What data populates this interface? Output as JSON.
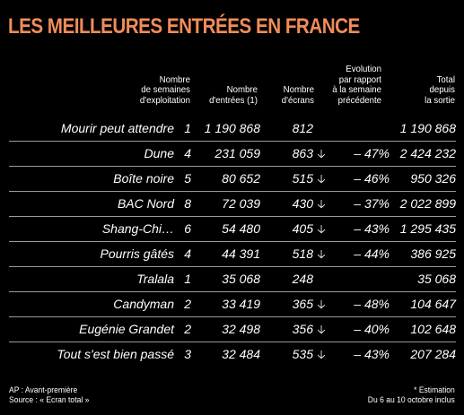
{
  "title": "LES MEILLEURES ENTRÉES EN FRANCE",
  "headers": {
    "weeks": "Nombre\nde semaines\nd'exploitation",
    "entries": "Nombre\nd'entrées (1)",
    "screens": "Nombre\nd'écrans",
    "evolution": "Evolution\npar rapport\nà la semaine\nprécédente",
    "total": "Total\ndepuis\nla sortie"
  },
  "rows": [
    {
      "title": "Mourir peut attendre",
      "weeks": "1",
      "entries": "1 190 868",
      "screens": "812",
      "arrow": "",
      "evolution": "",
      "total": "1 190 868"
    },
    {
      "title": "Dune",
      "weeks": "4",
      "entries": "231 059",
      "screens": "863",
      "arrow": "🡣",
      "evolution": "– 47%",
      "total": "2 424 232"
    },
    {
      "title": "Boîte noire",
      "weeks": "5",
      "entries": "80 652",
      "screens": "515",
      "arrow": "🡣",
      "evolution": "– 46%",
      "total": "950 326"
    },
    {
      "title": "BAC Nord",
      "weeks": "8",
      "entries": "72 039",
      "screens": "430",
      "arrow": "🡣",
      "evolution": "– 37%",
      "total": "2 022 899"
    },
    {
      "title": "Shang-Chi…",
      "weeks": "6",
      "entries": "54 480",
      "screens": "405",
      "arrow": "🡣",
      "evolution": "– 43%",
      "total": "1 295 435"
    },
    {
      "title": "Pourris gâtés",
      "weeks": "4",
      "entries": "44 391",
      "screens": "518",
      "arrow": "🡣",
      "evolution": "– 44%",
      "total": "386 925"
    },
    {
      "title": "Tralala",
      "weeks": "1",
      "entries": "35 068",
      "screens": "248",
      "arrow": "",
      "evolution": "",
      "total": "35 068"
    },
    {
      "title": "Candyman",
      "weeks": "2",
      "entries": "33 419",
      "screens": "365",
      "arrow": "🡣",
      "evolution": "– 48%",
      "total": "104 647"
    },
    {
      "title": "Eugénie Grandet",
      "weeks": "2",
      "entries": "32 498",
      "screens": "356",
      "arrow": "🡣",
      "evolution": "– 40%",
      "total": "102 648"
    },
    {
      "title": "Tout s'est bien passé",
      "weeks": "3",
      "entries": "32 484",
      "screens": "535",
      "arrow": "🡣",
      "evolution": "– 43%",
      "total": "207 284"
    }
  ],
  "footer": {
    "left_line1": "AP : Avant-première",
    "left_line2": "Source : « Ecran total »",
    "right_line1": "* Estimation",
    "right_line2": "Du 6 au 10 octobre inclus"
  },
  "colors": {
    "title": "#f08c5a",
    "background": "#000000",
    "text": "#ffffff"
  }
}
